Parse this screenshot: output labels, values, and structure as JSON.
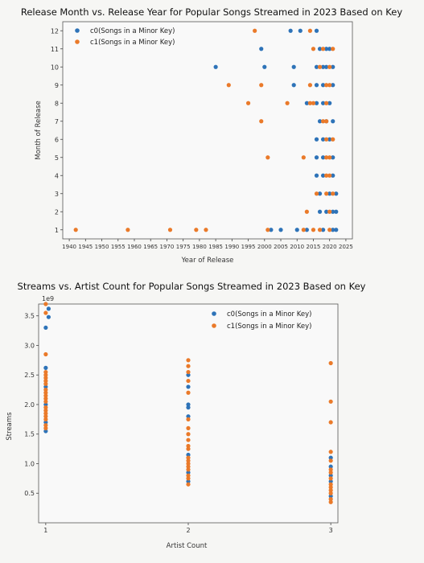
{
  "colors": {
    "c0": "#2e73b8",
    "c1": "#ea7a2a",
    "page_bg": "#f6f6f4",
    "plot_bg": "#f9f9f9"
  },
  "chart_data": [
    {
      "type": "scatter",
      "title": "Release Month vs. Release Year for Popular Songs Streamed in 2023 Based on Key",
      "xlabel": "Year of Release",
      "ylabel": "Month of Release",
      "xlim": [
        1938,
        2027
      ],
      "ylim": [
        0.5,
        12.5
      ],
      "xticks": [
        1940,
        1945,
        1950,
        1955,
        1960,
        1965,
        1970,
        1975,
        1980,
        1985,
        1990,
        1995,
        2000,
        2005,
        2010,
        2015,
        2020,
        2025
      ],
      "yticks": [
        1,
        2,
        3,
        4,
        5,
        6,
        7,
        8,
        9,
        10,
        11,
        12
      ],
      "legend": {
        "position": "top-left"
      },
      "series": [
        {
          "name": "c0(Songs in a Minor Key)",
          "color": "#2e73b8",
          "points": [
            [
              1985,
              10
            ],
            [
              1999,
              11
            ],
            [
              2000,
              10
            ],
            [
              2008,
              12
            ],
            [
              2011,
              12
            ],
            [
              2016,
              12
            ],
            [
              2017,
              11
            ],
            [
              2019,
              11
            ],
            [
              2020,
              11
            ],
            [
              2009,
              10
            ],
            [
              2016,
              10
            ],
            [
              2018,
              10
            ],
            [
              2019,
              10
            ],
            [
              2021,
              10
            ],
            [
              2009,
              9
            ],
            [
              2016,
              9
            ],
            [
              2018,
              9
            ],
            [
              2021,
              9
            ],
            [
              2013,
              8
            ],
            [
              2016,
              8
            ],
            [
              2018,
              8
            ],
            [
              2020,
              8
            ],
            [
              2017,
              7
            ],
            [
              2019,
              7
            ],
            [
              2021,
              7
            ],
            [
              2016,
              6
            ],
            [
              2018,
              6
            ],
            [
              2020,
              6
            ],
            [
              2016,
              5
            ],
            [
              2018,
              5
            ],
            [
              2021,
              5
            ],
            [
              2016,
              4
            ],
            [
              2018,
              4
            ],
            [
              2021,
              4
            ],
            [
              2017,
              3
            ],
            [
              2020,
              3
            ],
            [
              2022,
              3
            ],
            [
              2017,
              2
            ],
            [
              2019,
              2
            ],
            [
              2021,
              2
            ],
            [
              2022,
              2
            ],
            [
              2002,
              1
            ],
            [
              2005,
              1
            ],
            [
              2010,
              1
            ],
            [
              2013,
              1
            ],
            [
              2018,
              1
            ],
            [
              2021,
              1
            ],
            [
              2022,
              1
            ]
          ]
        },
        {
          "name": "c1(Songs in a Minor Key)",
          "color": "#ea7a2a",
          "points": [
            [
              1942,
              1
            ],
            [
              1958,
              1
            ],
            [
              1971,
              1
            ],
            [
              1979,
              1
            ],
            [
              1982,
              1
            ],
            [
              2001,
              1
            ],
            [
              2012,
              1
            ],
            [
              2015,
              1
            ],
            [
              2017,
              1
            ],
            [
              2020,
              1
            ],
            [
              1997,
              12
            ],
            [
              2014,
              12
            ],
            [
              2015,
              11
            ],
            [
              2018,
              11
            ],
            [
              2021,
              11
            ],
            [
              2017,
              10
            ],
            [
              2020,
              10
            ],
            [
              1989,
              9
            ],
            [
              1999,
              9
            ],
            [
              2014,
              9
            ],
            [
              2019,
              9
            ],
            [
              2020,
              9
            ],
            [
              1995,
              8
            ],
            [
              2007,
              8
            ],
            [
              2014,
              8
            ],
            [
              2015,
              8
            ],
            [
              2019,
              8
            ],
            [
              2019,
              6
            ],
            [
              2021,
              6
            ],
            [
              2001,
              5
            ],
            [
              2012,
              5
            ],
            [
              2019,
              5
            ],
            [
              2020,
              5
            ],
            [
              2019,
              4
            ],
            [
              2020,
              4
            ],
            [
              2016,
              3
            ],
            [
              2019,
              3
            ],
            [
              2021,
              3
            ],
            [
              2020,
              2
            ],
            [
              2013,
              2
            ],
            [
              1999,
              7
            ],
            [
              2019,
              7
            ],
            [
              2018,
              7
            ]
          ]
        }
      ]
    },
    {
      "type": "scatter",
      "title": "Streams vs. Artist Count for Popular Songs Streamed in 2023 Based on Key",
      "xlabel": "Artist Count",
      "ylabel": "Streams",
      "offset_text": "1e9",
      "xlim": [
        0.95,
        3.05
      ],
      "ylim": [
        0,
        3.7
      ],
      "xticks": [
        1,
        2,
        3
      ],
      "yticks": [
        0.5,
        1.0,
        1.5,
        2.0,
        2.5,
        3.0,
        3.5
      ],
      "legend": {
        "position": "top-right"
      },
      "series": [
        {
          "name": "c0(Songs in a Minor Key)",
          "color": "#2e73b8",
          "points": [
            [
              1.02,
              3.62
            ],
            [
              1.02,
              3.48
            ],
            [
              1.0,
              3.3
            ],
            [
              1.0,
              2.62
            ],
            [
              1.0,
              2.3
            ],
            [
              1.0,
              2.0
            ],
            [
              1.0,
              1.7
            ],
            [
              1.0,
              1.55
            ],
            [
              2.0,
              2.5
            ],
            [
              2.0,
              2.3
            ],
            [
              2.0,
              2.0
            ],
            [
              2.0,
              1.95
            ],
            [
              2.0,
              1.8
            ],
            [
              2.0,
              1.15
            ],
            [
              2.0,
              0.85
            ],
            [
              2.0,
              0.7
            ],
            [
              3.0,
              1.1
            ],
            [
              3.0,
              0.95
            ],
            [
              3.0,
              0.8
            ],
            [
              3.0,
              0.7
            ],
            [
              3.0,
              0.45
            ]
          ]
        },
        {
          "name": "c1(Songs in a Minor Key)",
          "color": "#ea7a2a",
          "points": [
            [
              1.0,
              3.7
            ],
            [
              1.0,
              3.55
            ],
            [
              1.0,
              2.85
            ],
            [
              1.0,
              2.55
            ],
            [
              1.0,
              2.5
            ],
            [
              1.0,
              2.45
            ],
            [
              1.0,
              2.4
            ],
            [
              1.0,
              2.35
            ],
            [
              1.0,
              2.25
            ],
            [
              1.0,
              2.2
            ],
            [
              1.0,
              2.15
            ],
            [
              1.0,
              2.1
            ],
            [
              1.0,
              2.05
            ],
            [
              1.0,
              1.95
            ],
            [
              1.0,
              1.9
            ],
            [
              1.0,
              1.85
            ],
            [
              1.0,
              1.8
            ],
            [
              1.0,
              1.75
            ],
            [
              1.0,
              1.65
            ],
            [
              1.0,
              1.6
            ],
            [
              2.0,
              2.75
            ],
            [
              2.0,
              2.65
            ],
            [
              2.0,
              2.55
            ],
            [
              2.0,
              2.4
            ],
            [
              2.0,
              2.2
            ],
            [
              2.0,
              1.75
            ],
            [
              2.0,
              1.6
            ],
            [
              2.0,
              1.5
            ],
            [
              2.0,
              1.4
            ],
            [
              2.0,
              1.3
            ],
            [
              2.0,
              1.25
            ],
            [
              2.0,
              1.1
            ],
            [
              2.0,
              1.05
            ],
            [
              2.0,
              1.0
            ],
            [
              2.0,
              0.95
            ],
            [
              2.0,
              0.9
            ],
            [
              2.0,
              0.8
            ],
            [
              2.0,
              0.75
            ],
            [
              2.0,
              0.65
            ],
            [
              3.0,
              2.7
            ],
            [
              3.0,
              2.05
            ],
            [
              3.0,
              1.7
            ],
            [
              3.0,
              1.2
            ],
            [
              3.0,
              1.05
            ],
            [
              3.0,
              0.9
            ],
            [
              3.0,
              0.85
            ],
            [
              3.0,
              0.75
            ],
            [
              3.0,
              0.65
            ],
            [
              3.0,
              0.6
            ],
            [
              3.0,
              0.55
            ],
            [
              3.0,
              0.5
            ],
            [
              3.0,
              0.4
            ],
            [
              3.0,
              0.35
            ]
          ]
        }
      ]
    }
  ]
}
